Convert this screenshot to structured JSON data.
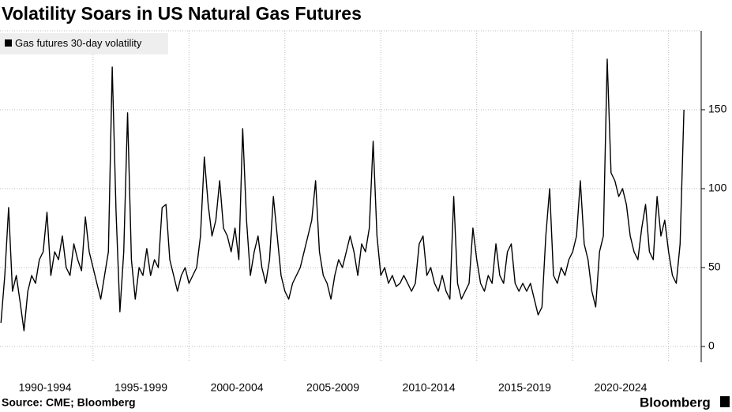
{
  "chart_data": {
    "type": "line",
    "title": "Volatility Soars in US Natural Gas Futures",
    "source": "Source: CME; Bloomberg",
    "brand": "Bloomberg",
    "series": [
      {
        "name": "Gas futures 30-day volatility",
        "color": "#000000",
        "values": [
          15,
          45,
          88,
          35,
          45,
          28,
          10,
          35,
          45,
          40,
          55,
          60,
          85,
          45,
          60,
          55,
          70,
          50,
          45,
          65,
          55,
          48,
          82,
          60,
          50,
          40,
          30,
          45,
          60,
          177,
          85,
          22,
          60,
          148,
          55,
          30,
          50,
          45,
          62,
          45,
          55,
          50,
          88,
          90,
          55,
          45,
          35,
          45,
          50,
          40,
          45,
          50,
          70,
          120,
          90,
          70,
          80,
          105,
          75,
          70,
          60,
          75,
          55,
          138,
          80,
          45,
          60,
          70,
          50,
          40,
          55,
          95,
          70,
          45,
          35,
          30,
          40,
          45,
          50,
          60,
          70,
          80,
          105,
          60,
          45,
          40,
          30,
          45,
          55,
          50,
          60,
          70,
          60,
          45,
          65,
          60,
          75,
          130,
          70,
          45,
          50,
          40,
          45,
          38,
          40,
          45,
          40,
          35,
          40,
          65,
          70,
          45,
          50,
          40,
          35,
          45,
          35,
          30,
          95,
          40,
          30,
          35,
          40,
          75,
          55,
          40,
          35,
          45,
          40,
          65,
          45,
          40,
          60,
          65,
          40,
          35,
          40,
          35,
          40,
          30,
          20,
          25,
          70,
          100,
          45,
          40,
          50,
          45,
          55,
          60,
          70,
          105,
          65,
          55,
          35,
          25,
          60,
          70,
          182,
          110,
          105,
          95,
          100,
          90,
          70,
          60,
          55,
          75,
          90,
          60,
          55,
          95,
          70,
          80,
          60,
          45,
          40,
          65,
          150
        ]
      }
    ],
    "x": [
      1990.2,
      1990.4,
      1990.6,
      1990.8,
      1991,
      1991.2,
      1991.4,
      1991.6,
      1991.8,
      1992,
      1992.2,
      1992.4,
      1992.6,
      1992.8,
      1993,
      1993.2,
      1993.4,
      1993.6,
      1993.8,
      1994,
      1994.2,
      1994.4,
      1994.6,
      1994.8,
      1995,
      1995.2,
      1995.4,
      1995.6,
      1995.8,
      1996,
      1996.2,
      1996.4,
      1996.6,
      1996.8,
      1997,
      1997.2,
      1997.4,
      1997.6,
      1997.8,
      1998,
      1998.2,
      1998.4,
      1998.6,
      1998.8,
      1999,
      1999.2,
      1999.4,
      1999.6,
      1999.8,
      2000,
      2000.2,
      2000.4,
      2000.6,
      2000.8,
      2001,
      2001.2,
      2001.4,
      2001.6,
      2001.8,
      2002,
      2002.2,
      2002.4,
      2002.6,
      2002.8,
      2003,
      2003.2,
      2003.4,
      2003.6,
      2003.8,
      2004,
      2004.2,
      2004.4,
      2004.6,
      2004.8,
      2005,
      2005.2,
      2005.4,
      2005.6,
      2005.8,
      2006,
      2006.2,
      2006.4,
      2006.6,
      2006.8,
      2007,
      2007.2,
      2007.4,
      2007.6,
      2007.8,
      2008,
      2008.2,
      2008.4,
      2008.6,
      2008.8,
      2009,
      2009.2,
      2009.4,
      2009.6,
      2009.8,
      2010,
      2010.2,
      2010.4,
      2010.6,
      2010.8,
      2011,
      2011.2,
      2011.4,
      2011.6,
      2011.8,
      2012,
      2012.2,
      2012.4,
      2012.6,
      2012.8,
      2013,
      2013.2,
      2013.4,
      2013.6,
      2013.8,
      2014,
      2014.2,
      2014.4,
      2014.6,
      2014.8,
      2015,
      2015.2,
      2015.4,
      2015.6,
      2015.8,
      2016,
      2016.2,
      2016.4,
      2016.6,
      2016.8,
      2017,
      2017.2,
      2017.4,
      2017.6,
      2017.8,
      2018,
      2018.2,
      2018.4,
      2018.6,
      2018.8,
      2019,
      2019.2,
      2019.4,
      2019.6,
      2019.8,
      2020,
      2020.2,
      2020.4,
      2020.6,
      2020.8,
      2021,
      2021.2,
      2021.4,
      2021.6,
      2021.8,
      2022,
      2022.2,
      2022.4,
      2022.6,
      2022.8,
      2023,
      2023.2,
      2023.4,
      2023.6,
      2023.8,
      2024,
      2024.2,
      2024.4,
      2024.6,
      2024.8,
      2025,
      2025.2,
      2025.4,
      2025.6,
      2025.8
    ],
    "xlim": [
      1990.15,
      2026
    ],
    "xticks": [
      {
        "value": 1992.5,
        "label": "1990-1994"
      },
      {
        "value": 1997.5,
        "label": "1995-1999"
      },
      {
        "value": 2002.5,
        "label": "2000-2004"
      },
      {
        "value": 2007.5,
        "label": "2005-2009"
      },
      {
        "value": 2012.5,
        "label": "2010-2014"
      },
      {
        "value": 2017.5,
        "label": "2015-2019"
      },
      {
        "value": 2022.5,
        "label": "2020-2024"
      }
    ],
    "ylim": [
      -10,
      200
    ],
    "yticks": [
      0,
      50,
      100,
      150
    ],
    "grid": true,
    "legend": "top-left"
  }
}
